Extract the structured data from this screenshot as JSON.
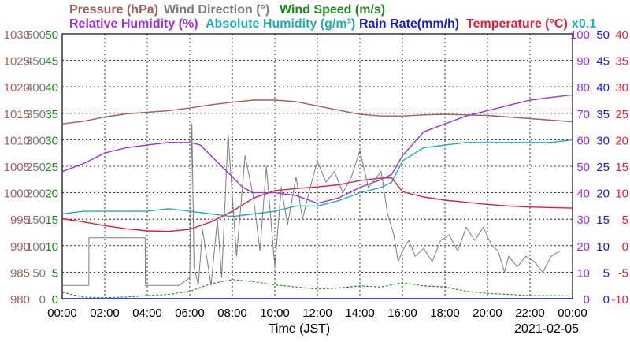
{
  "chart_data": {
    "type": "line",
    "date_label": "2021-02-05",
    "xlabel": "Time (JST)",
    "x_ticks": [
      "00:00",
      "02:00",
      "04:00",
      "06:00",
      "08:00",
      "10:00",
      "12:00",
      "14:00",
      "16:00",
      "18:00",
      "20:00",
      "22:00",
      "00:00"
    ],
    "x_range_hours": [
      0,
      24
    ],
    "grid": true,
    "legend_row1": [
      {
        "label": "Pressure (hPa)",
        "color": "#a0605c"
      },
      {
        "label": "Wind Direction (°)",
        "color": "#7c7c7c"
      },
      {
        "label": "Wind Speed (m/s)",
        "color": "#1a8a1a"
      }
    ],
    "legend_row2": [
      {
        "label": "Relative Humidity (%)",
        "color": "#9a30e8"
      },
      {
        "label": "Absolute Humidity (g/m³)",
        "color": "#20b0b0"
      },
      {
        "label": "Rain Rate(mm/h)",
        "color": "#1a1ae0"
      },
      {
        "label": "Temperature (°C)",
        "color": "#e81a3a"
      },
      {
        "label": "x0.1",
        "color": "#20b0b0"
      }
    ],
    "axes": {
      "pressure": {
        "color": "#a0605c",
        "ticks": [
          "1030",
          "1025",
          "1020",
          "1015",
          "1010",
          "1005",
          "1000",
          "995",
          "990",
          "985",
          "980"
        ],
        "range": [
          980,
          1030
        ]
      },
      "wind_direction": {
        "color": "#7c7c7c",
        "ticks": [
          "500",
          "450",
          "400",
          "350",
          "300",
          "250",
          "200",
          "150",
          "100",
          "50",
          "0"
        ],
        "range": [
          0,
          500
        ]
      },
      "wind_speed": {
        "color": "#1a8a1a",
        "ticks": [
          "50",
          "45",
          "40",
          "35",
          "30",
          "25",
          "20",
          "15",
          "10",
          "5",
          "0"
        ],
        "range": [
          0,
          50
        ]
      },
      "relative_humidity": {
        "color": "#9a30e8",
        "ticks": [
          "100",
          "90",
          "80",
          "70",
          "60",
          "50",
          "40",
          "30",
          "20",
          "10",
          "0"
        ],
        "range": [
          0,
          100
        ]
      },
      "rain_rate": {
        "color": "#1a1ae0",
        "ticks": [
          "50",
          "45",
          "40",
          "35",
          "30",
          "25",
          "20",
          "15",
          "10",
          "5",
          "0"
        ],
        "range": [
          0,
          50
        ]
      },
      "temperature": {
        "color": "#e81a3a",
        "ticks": [
          "40",
          "35",
          "30",
          "25",
          "20",
          "15",
          "10",
          "5",
          "0",
          "-5",
          "-10"
        ],
        "range": [
          -10,
          40
        ]
      }
    },
    "series": [
      {
        "name": "Pressure (hPa)",
        "axis": "pressure",
        "color": "#a0605c",
        "x": [
          0,
          1,
          2,
          3,
          4,
          5,
          6,
          7,
          8,
          9,
          10,
          11,
          12,
          13,
          14,
          15,
          16,
          17,
          18,
          19,
          20,
          21,
          22,
          23,
          24
        ],
        "y": [
          1013.0,
          1013.5,
          1014.3,
          1014.9,
          1015.2,
          1015.5,
          1016.0,
          1016.6,
          1017.1,
          1017.5,
          1017.5,
          1017.2,
          1016.4,
          1015.6,
          1014.8,
          1014.5,
          1014.5,
          1014.7,
          1014.8,
          1014.7,
          1014.6,
          1014.3,
          1014.0,
          1013.7,
          1013.4
        ]
      },
      {
        "name": "Relative Humidity (%)",
        "axis": "relative_humidity",
        "color": "#9a30e8",
        "x": [
          0,
          1,
          2,
          3,
          4,
          5,
          6,
          6.5,
          7,
          7.5,
          8,
          8.5,
          9,
          10,
          11,
          12,
          13,
          14,
          15,
          15.5,
          16,
          17,
          18,
          19,
          20,
          21,
          22,
          23,
          24
        ],
        "y": [
          48,
          51,
          55,
          57,
          58,
          59,
          59,
          58,
          54,
          50,
          46,
          42,
          40,
          40,
          39,
          36,
          38,
          42,
          45,
          47,
          54,
          63,
          66,
          69,
          71,
          73,
          75,
          76,
          77
        ]
      },
      {
        "name": "Absolute Humidity (g/m³)",
        "axis": "relative_humidity",
        "color": "#20b0b0",
        "x": [
          0,
          1,
          2,
          3,
          4,
          5,
          6,
          7,
          8,
          9,
          10,
          11,
          12,
          13,
          14,
          15,
          15.5,
          16,
          17,
          18,
          19,
          20,
          21,
          22,
          23,
          24
        ],
        "y": [
          32,
          33,
          33,
          33,
          33,
          34,
          33,
          32,
          31,
          32,
          33,
          35,
          35,
          37,
          40,
          42,
          44,
          52,
          57,
          58,
          59,
          59,
          59,
          59,
          59,
          60
        ]
      },
      {
        "name": "Temperature (°C)",
        "axis": "temperature",
        "color": "#e81a3a",
        "x": [
          0,
          1,
          2,
          3,
          4,
          5,
          6,
          7,
          8,
          9,
          10,
          11,
          12,
          13,
          14,
          15,
          15.5,
          16,
          17,
          18,
          19,
          20,
          21,
          22,
          23,
          24
        ],
        "y": [
          5.1,
          4.5,
          3.8,
          3.2,
          2.8,
          2.7,
          3.1,
          4.5,
          6.5,
          9.0,
          10.4,
          10.8,
          11.1,
          11.5,
          12.3,
          12.8,
          12.8,
          10.2,
          9.2,
          8.6,
          8.2,
          7.8,
          7.5,
          7.3,
          7.2,
          7.1
        ]
      },
      {
        "name": "Wind Direction (°)",
        "axis": "wind_direction",
        "color": "#7c7c7c",
        "x": [
          0,
          1,
          1.25,
          1.26,
          2,
          3,
          3.9,
          3.91,
          4.5,
          5.5,
          6,
          6.1,
          6.2,
          6.4,
          6.6,
          7,
          7.3,
          7.5,
          7.8,
          8.2,
          8.6,
          9,
          9.3,
          9.6,
          10,
          10.3,
          10.6,
          11,
          11.3,
          11.6,
          12,
          12.4,
          12.8,
          13.2,
          13.6,
          14,
          14.4,
          14.8,
          15,
          15.3,
          15.6,
          15.8,
          16,
          16.3,
          16.6,
          17,
          17.4,
          17.8,
          18.2,
          18.6,
          19,
          19.4,
          19.8,
          20.2,
          20.5,
          20.8,
          21,
          21.4,
          21.8,
          22.2,
          22.6,
          23,
          23.4,
          23.8,
          24
        ],
        "y": [
          25,
          25,
          25,
          115,
          115,
          115,
          115,
          25,
          25,
          25,
          40,
          330,
          60,
          25,
          130,
          25,
          150,
          40,
          310,
          80,
          270,
          190,
          90,
          250,
          60,
          210,
          140,
          230,
          150,
          200,
          260,
          220,
          240,
          200,
          230,
          280,
          210,
          230,
          240,
          160,
          120,
          70,
          90,
          110,
          80,
          95,
          70,
          110,
          120,
          90,
          135,
          110,
          135,
          100,
          90,
          50,
          80,
          60,
          80,
          70,
          50,
          80,
          90,
          90,
          90
        ]
      },
      {
        "name": "Wind Speed (m/s)",
        "axis": "wind_speed",
        "color": "#1a8a1a",
        "x": [
          0,
          1,
          2,
          3,
          4,
          5,
          6,
          7,
          8,
          9,
          10,
          11,
          12,
          13,
          14,
          15,
          16,
          17,
          18,
          19,
          20,
          21,
          22,
          23,
          24
        ],
        "y": [
          1.2,
          0.3,
          0.2,
          0.3,
          0.6,
          0.8,
          1.4,
          2.8,
          3.6,
          3.2,
          2.6,
          2.2,
          1.8,
          2.0,
          2.4,
          2.2,
          3.0,
          2.4,
          2.2,
          1.4,
          1.0,
          0.8,
          0.6,
          0.6,
          0.5
        ]
      },
      {
        "name": "Rain Rate(mm/h)",
        "axis": "rain_rate",
        "color": "#1a1ae0",
        "x": [
          0,
          24
        ],
        "y": [
          0,
          0
        ]
      }
    ]
  }
}
